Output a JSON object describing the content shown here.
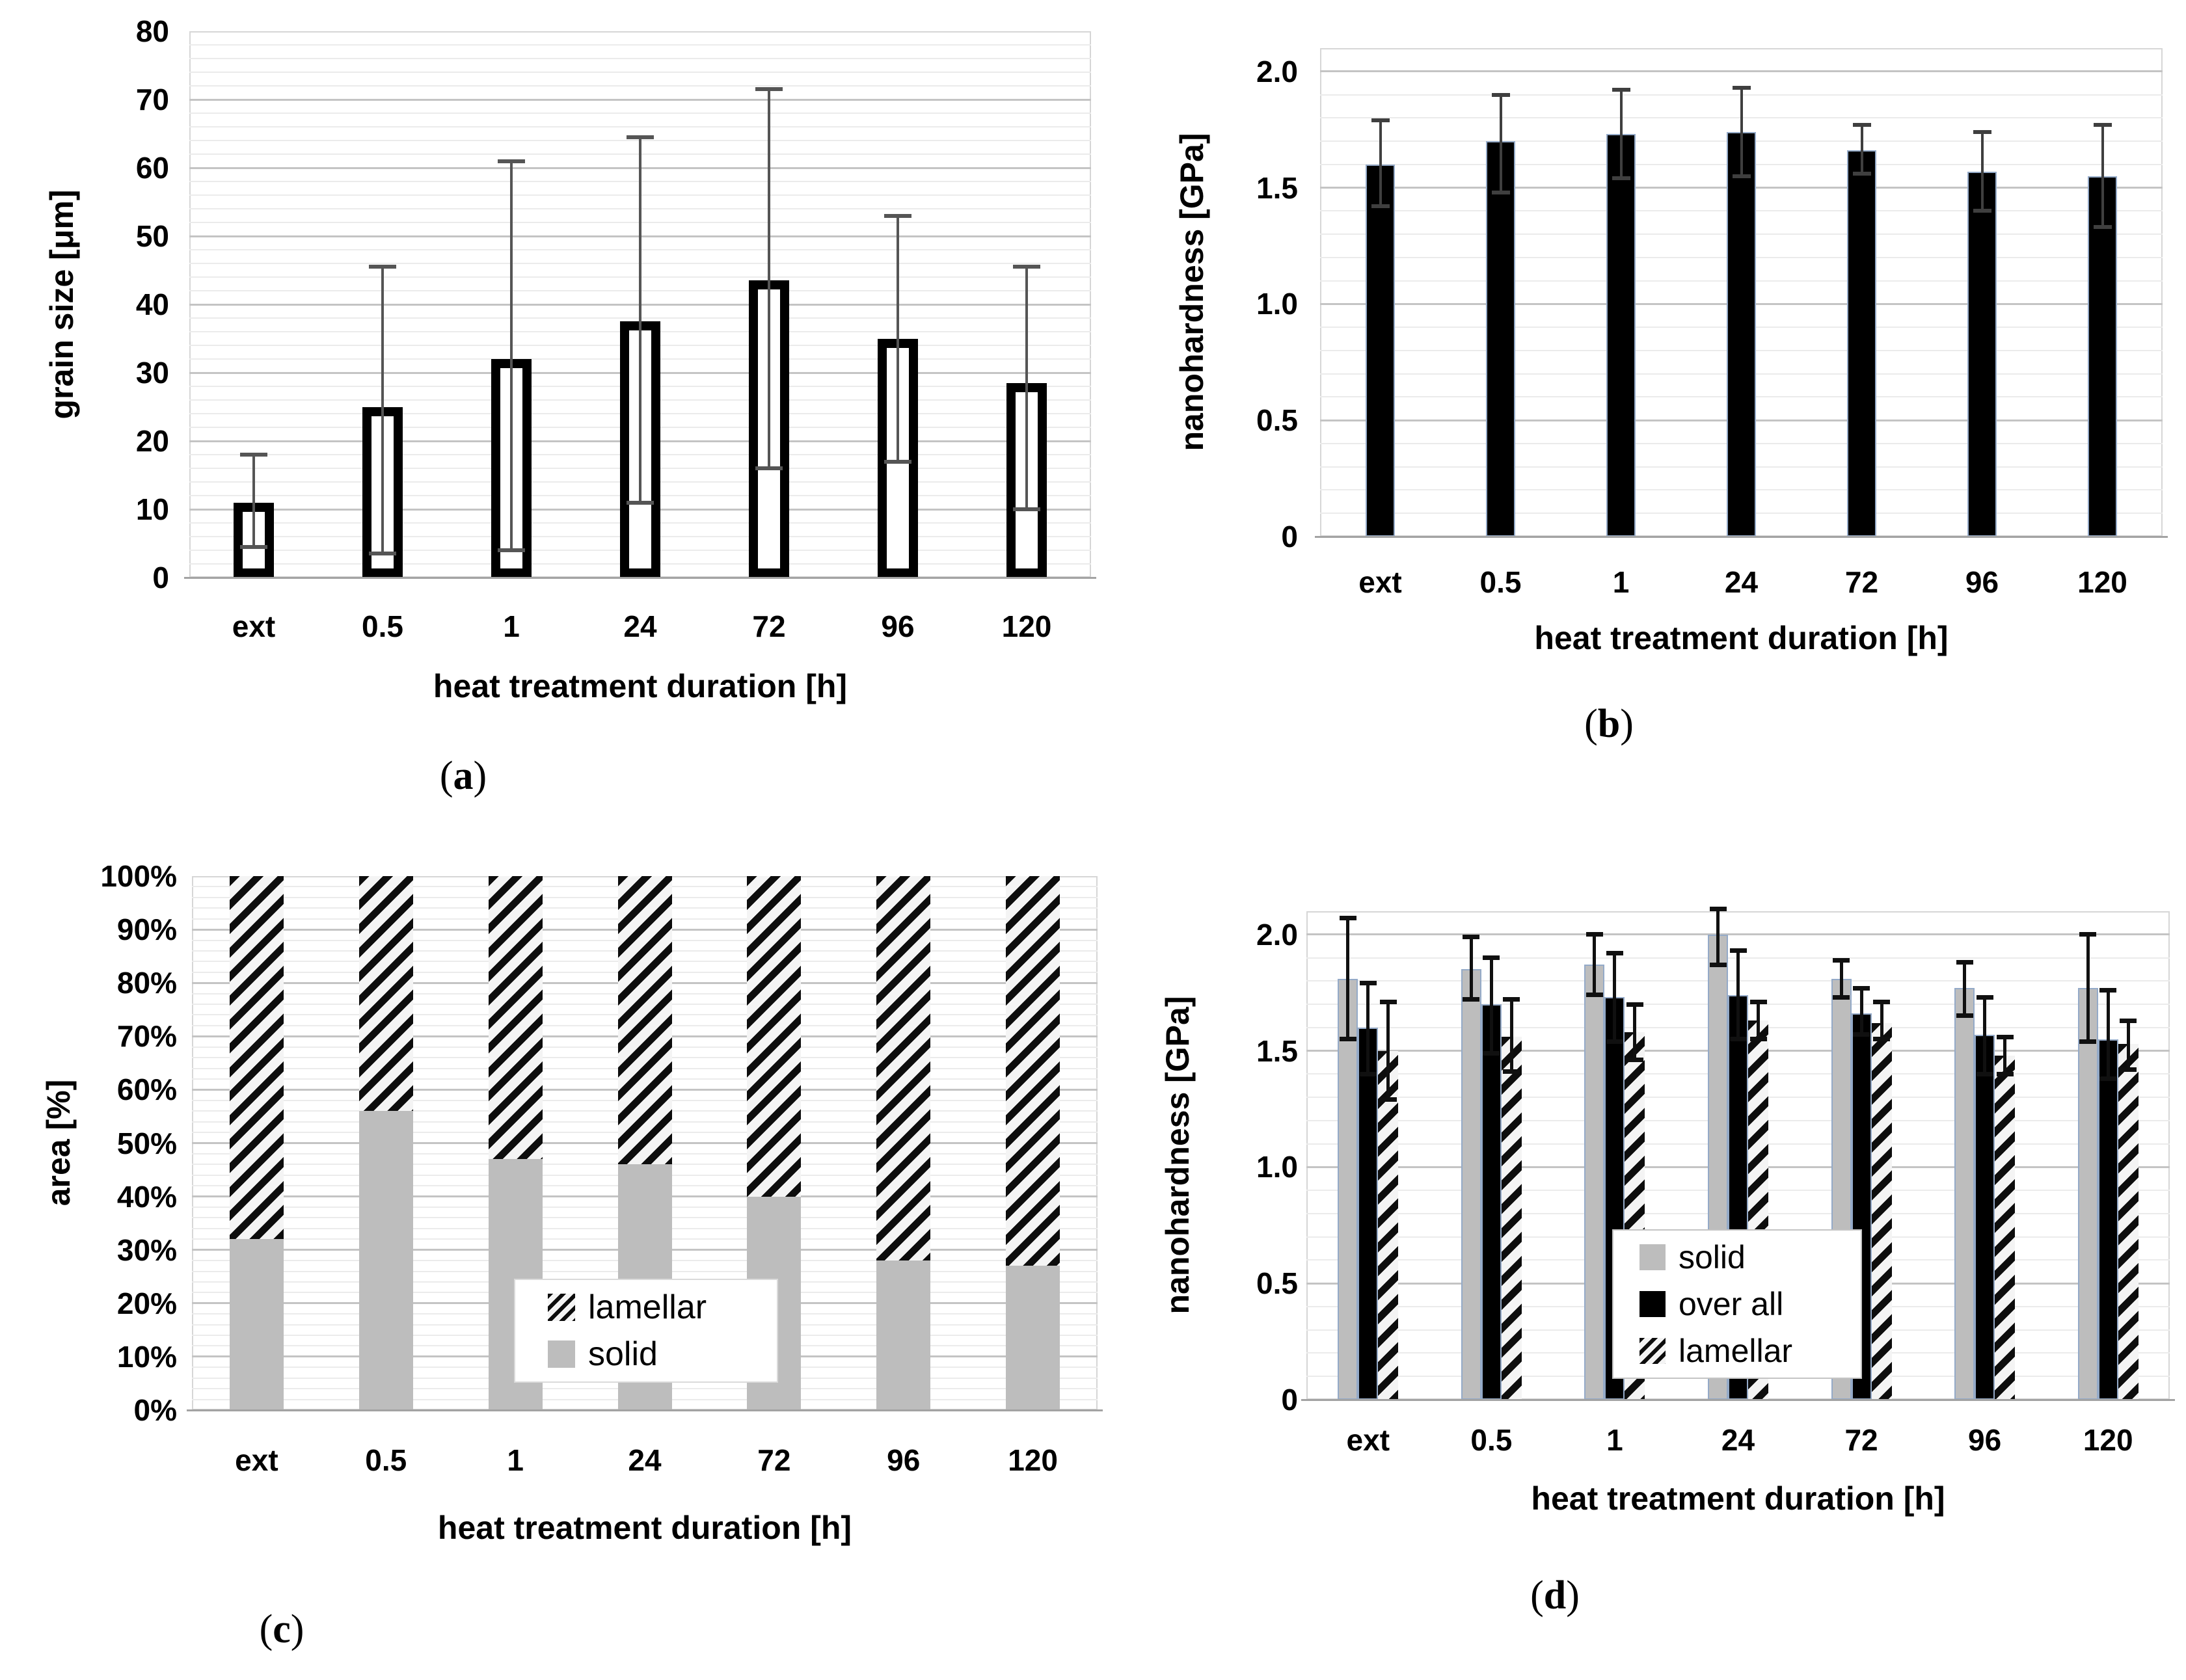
{
  "figure": {
    "colors": {
      "background": "#ffffff",
      "text": "#000000",
      "bar_black": "#000000",
      "bar_gray": "#bdbdbd",
      "bar_white": "#ffffff",
      "bar_edge_blue": "#94aac8",
      "hatch_dark": "#0d0d0d",
      "hatch_light": "#f4f4f4",
      "grid_major": "#c4c4c4",
      "grid_minor": "#ebebeb",
      "plot_border": "#d6d6d6",
      "axis_line": "#a3a3a3",
      "error_dark": "#404040"
    }
  },
  "captions": {
    "a": {
      "pre": "(",
      "letter": "a",
      "post": ")"
    },
    "b": {
      "pre": "(",
      "letter": "b",
      "post": ")"
    },
    "c": {
      "pre": "(",
      "letter": "c",
      "post": ")"
    },
    "d": {
      "pre": "(",
      "letter": "d",
      "post": ")"
    }
  },
  "chart_data": [
    {
      "id": "a",
      "type": "bar",
      "title": "",
      "xlabel": "heat treatment duration [h]",
      "ylabel": "grain size [μm]",
      "categories": [
        "ext",
        "0.5",
        "1",
        "24",
        "72",
        "96",
        "120"
      ],
      "series": [
        {
          "name": "grain size",
          "style": "outline",
          "values": [
            11,
            25,
            32,
            37.5,
            43.5,
            35,
            28.5
          ],
          "error_low": [
            4.5,
            3.5,
            4,
            11,
            16,
            17,
            10
          ],
          "error_high": [
            18,
            45.5,
            61,
            64.5,
            71.5,
            53,
            45.5
          ]
        }
      ],
      "ylim": [
        0,
        80
      ],
      "ytick_step": 10,
      "minor_step": 2,
      "ytick_labels": [
        "0",
        "10",
        "20",
        "30",
        "40",
        "50",
        "60",
        "70",
        "80"
      ],
      "grid": true,
      "legend": null
    },
    {
      "id": "b",
      "type": "bar",
      "title": "",
      "xlabel": "heat treatment duration [h]",
      "ylabel": "nanohardness [GPa]",
      "categories": [
        "ext",
        "0.5",
        "1",
        "24",
        "72",
        "96",
        "120"
      ],
      "series": [
        {
          "name": "nanohardness",
          "style": "black",
          "values": [
            1.6,
            1.7,
            1.73,
            1.74,
            1.66,
            1.57,
            1.55
          ],
          "error_low": [
            1.42,
            1.48,
            1.54,
            1.55,
            1.56,
            1.4,
            1.33
          ],
          "error_high": [
            1.79,
            1.9,
            1.92,
            1.93,
            1.77,
            1.74,
            1.77
          ]
        }
      ],
      "ylim": [
        0,
        2.1
      ],
      "ytick_step": 0.5,
      "minor_step": 0.1,
      "ytick_labels": [
        "0",
        "0.5",
        "1.0",
        "1.5",
        "2.0"
      ],
      "grid": true,
      "legend": null
    },
    {
      "id": "c",
      "type": "stacked100",
      "title": "",
      "xlabel": "heat treatment duration [h]",
      "ylabel": "area [%]",
      "categories": [
        "ext",
        "0.5",
        "1",
        "24",
        "72",
        "96",
        "120"
      ],
      "series": [
        {
          "name": "solid",
          "style": "gray",
          "values": [
            32,
            56,
            47,
            46,
            40,
            28,
            27
          ]
        },
        {
          "name": "lamellar",
          "style": "hatch",
          "values": [
            68,
            44,
            53,
            54,
            60,
            72,
            73
          ]
        }
      ],
      "ylim": [
        0,
        100
      ],
      "ytick_step": 10,
      "minor_step": 2,
      "ytick_labels": [
        "0%",
        "10%",
        "20%",
        "30%",
        "40%",
        "50%",
        "60%",
        "70%",
        "80%",
        "90%",
        "100%"
      ],
      "grid": true,
      "legend": {
        "entries": [
          {
            "label": "lamellar",
            "style": "hatch"
          },
          {
            "label": "solid",
            "style": "gray"
          }
        ]
      }
    },
    {
      "id": "d",
      "type": "grouped",
      "title": "",
      "xlabel": "heat treatment duration [h]",
      "ylabel": "nanohardness [GPa]",
      "categories": [
        "ext",
        "0.5",
        "1",
        "24",
        "72",
        "96",
        "120"
      ],
      "series": [
        {
          "name": "solid",
          "style": "gray",
          "values": [
            1.81,
            1.85,
            1.87,
            2.0,
            1.81,
            1.77,
            1.77
          ],
          "error_low": [
            1.55,
            1.72,
            1.74,
            1.87,
            1.73,
            1.65,
            1.54
          ],
          "error_high": [
            2.07,
            1.99,
            2.0,
            2.11,
            1.89,
            1.88,
            2.0
          ]
        },
        {
          "name": "over all",
          "style": "black",
          "values": [
            1.6,
            1.7,
            1.73,
            1.74,
            1.66,
            1.57,
            1.55
          ],
          "error_low": [
            1.4,
            1.49,
            1.54,
            1.55,
            1.57,
            1.4,
            1.38
          ],
          "error_high": [
            1.79,
            1.9,
            1.92,
            1.93,
            1.77,
            1.73,
            1.76
          ]
        },
        {
          "name": "lamellar",
          "style": "hatch",
          "values": [
            1.5,
            1.56,
            1.58,
            1.63,
            1.62,
            1.48,
            1.53
          ],
          "error_low": [
            1.29,
            1.41,
            1.46,
            1.55,
            1.55,
            1.4,
            1.42
          ],
          "error_high": [
            1.71,
            1.72,
            1.7,
            1.71,
            1.71,
            1.56,
            1.63
          ]
        }
      ],
      "ylim": [
        0,
        2.1
      ],
      "ytick_step": 0.5,
      "minor_step": 0.1,
      "ytick_labels": [
        "0",
        "0.5",
        "1.0",
        "1.5",
        "2.0"
      ],
      "grid": true,
      "legend": {
        "entries": [
          {
            "label": "solid",
            "style": "gray"
          },
          {
            "label": "over all",
            "style": "black"
          },
          {
            "label": "lamellar",
            "style": "hatch"
          }
        ]
      }
    }
  ]
}
